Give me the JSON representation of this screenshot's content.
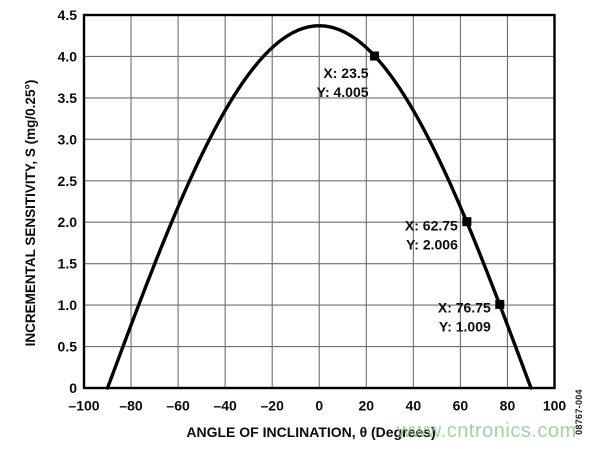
{
  "figure": {
    "id_label": "08767-004",
    "watermark": "www.cntronics.com"
  },
  "chart_data": {
    "type": "line",
    "title": "",
    "xlabel": "ANGLE OF INCLINATION, θ (Degrees)",
    "ylabel": "INCREMENTAL SENSITIVITY, S (mg/0.25°)",
    "xlim": [
      -100,
      100
    ],
    "ylim": [
      0,
      4.5
    ],
    "grid": true,
    "x_ticks": [
      -100,
      -80,
      -60,
      -40,
      -20,
      0,
      20,
      40,
      60,
      80,
      100
    ],
    "x_tick_labels": [
      "–100",
      "–80",
      "–60",
      "–40",
      "–20",
      "0",
      "20",
      "40",
      "60",
      "80",
      "100"
    ],
    "y_ticks": [
      0,
      0.5,
      1.0,
      1.5,
      2.0,
      2.5,
      3.0,
      3.5,
      4.0,
      4.5
    ],
    "y_tick_labels": [
      "0",
      "0.5",
      "1.0",
      "1.5",
      "2.0",
      "2.5",
      "3.0",
      "3.5",
      "4.0",
      "4.5"
    ],
    "series": [
      {
        "name": "incremental-sensitivity-curve",
        "model": "S = amplitude * cos(theta), clipped at 0",
        "amplitude": 4.37,
        "theta_range": [
          -90,
          90
        ],
        "sample_points": [
          [
            -90,
            0
          ],
          [
            -80,
            0.759
          ],
          [
            -70,
            1.495
          ],
          [
            -60,
            2.185
          ],
          [
            -50,
            2.809
          ],
          [
            -40,
            3.348
          ],
          [
            -30,
            3.785
          ],
          [
            -20,
            4.106
          ],
          [
            -10,
            4.304
          ],
          [
            0,
            4.37
          ],
          [
            10,
            4.304
          ],
          [
            20,
            4.106
          ],
          [
            30,
            3.785
          ],
          [
            40,
            3.348
          ],
          [
            50,
            2.809
          ],
          [
            60,
            2.185
          ],
          [
            70,
            1.495
          ],
          [
            80,
            0.759
          ],
          [
            90,
            0
          ]
        ]
      }
    ],
    "markers": [
      {
        "x": 23.5,
        "y": 4.005,
        "label_lines": [
          "X: 23.5",
          "Y: 4.005"
        ]
      },
      {
        "x": 62.75,
        "y": 2.006,
        "label_lines": [
          "X: 62.75",
          "Y: 2.006"
        ]
      },
      {
        "x": 76.75,
        "y": 1.009,
        "label_lines": [
          "X: 76.75",
          "Y: 1.009"
        ]
      }
    ],
    "colors": {
      "curve": "#000000",
      "grid": "#6f6f6f",
      "border": "#000000",
      "marker": "#000000",
      "text": "#0a0a0a",
      "watermark": "#8cc98c"
    }
  }
}
